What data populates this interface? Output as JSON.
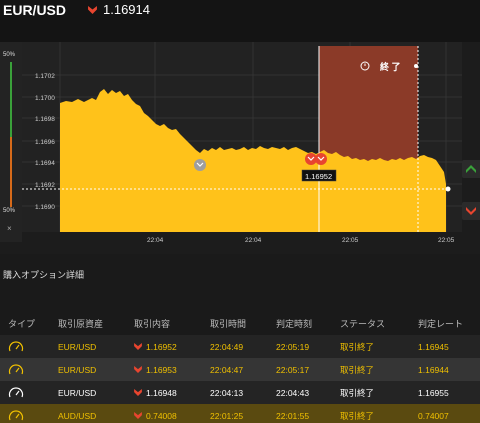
{
  "header": {
    "pair": "EUR/USD",
    "rate": "1.16914"
  },
  "chart": {
    "pct_top": "50%",
    "pct_bottom": "50%",
    "close_label": "×",
    "yticks": [
      "1.1702",
      "1.1700",
      "1.1698",
      "1.1696",
      "1.1694",
      "1.1692",
      "1.1690"
    ],
    "xticks": [
      "22:04",
      "22:04",
      "22:05",
      "22:05"
    ],
    "end_label": "終 了",
    "marker_value": "1.16952"
  },
  "section_title": "購入オプション詳細",
  "table": {
    "headers": {
      "type": "タイプ",
      "asset": "取引原資産",
      "content": "取引内容",
      "time": "取引時間",
      "judge": "判定時刻",
      "status": "ステータス",
      "rate": "判定レート"
    },
    "rows": [
      {
        "asset": "EUR/USD",
        "content": "1.16952",
        "time": "22:04:49",
        "judge": "22:05:19",
        "status": "取引終了",
        "rate": "1.16945"
      },
      {
        "asset": "EUR/USD",
        "content": "1.16953",
        "time": "22:04:47",
        "judge": "22:05:17",
        "status": "取引終了",
        "rate": "1.16944"
      },
      {
        "asset": "EUR/USD",
        "content": "1.16948",
        "time": "22:04:13",
        "judge": "22:04:43",
        "status": "取引終了",
        "rate": "1.16955"
      },
      {
        "asset": "AUD/USD",
        "content": "0.74008",
        "time": "22:01:25",
        "judge": "22:01:55",
        "status": "取引終了",
        "rate": "0.74007"
      }
    ]
  },
  "colors": {
    "area_fill": "#ffc21a",
    "down_red": "#e8452f",
    "accent_yellow": "#f0c000",
    "expiry_zone": "#8b3a28"
  }
}
